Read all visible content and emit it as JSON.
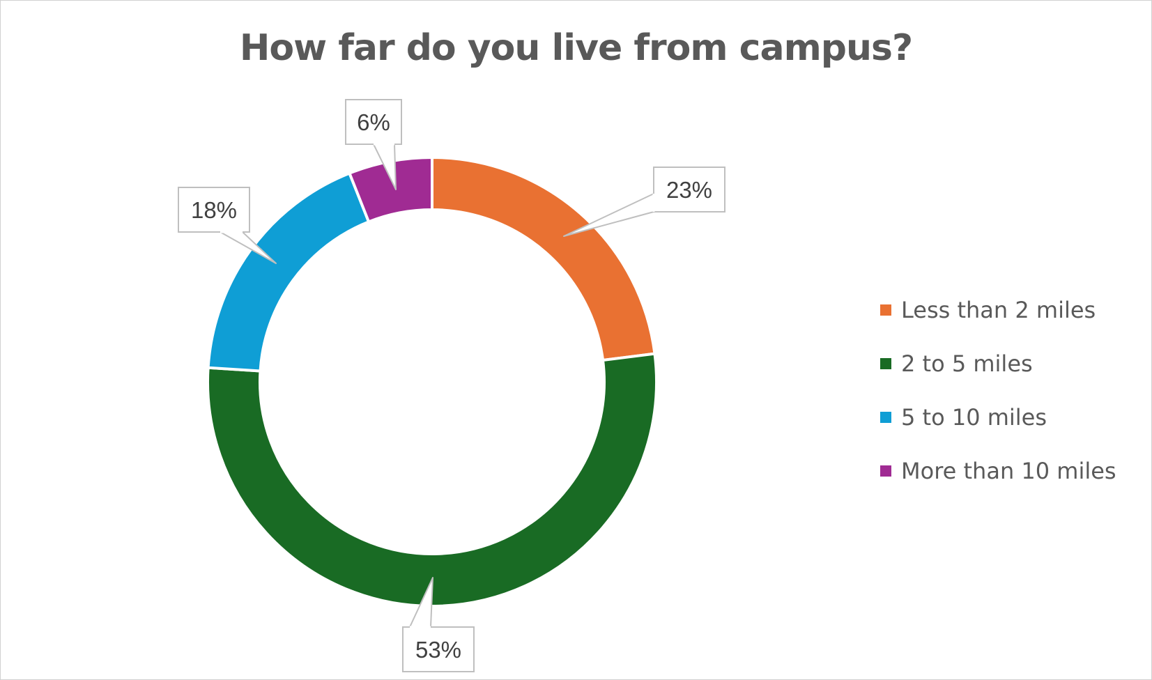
{
  "chart_data": {
    "type": "pie",
    "variant": "donut",
    "title": "How far do you live from campus?",
    "categories": [
      "Less than 2 miles",
      "2 to 5 miles",
      "5 to 10 miles",
      "More than 10 miles"
    ],
    "values": [
      23,
      53,
      18,
      6
    ],
    "labels": [
      "23%",
      "53%",
      "18%",
      "6%"
    ],
    "colors": [
      "#E97132",
      "#196B24",
      "#0F9ED5",
      "#A02B93"
    ],
    "legend_position": "right",
    "start_angle": "top",
    "direction": "clockwise"
  }
}
